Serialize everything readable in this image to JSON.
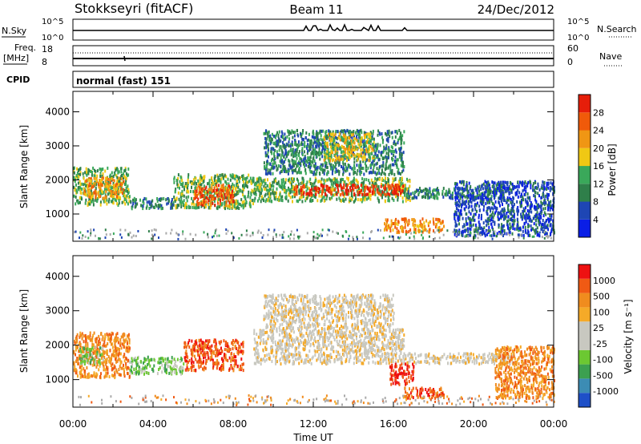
{
  "header": {
    "station": "Stokkseyri (fitACF)",
    "beam": "Beam 11",
    "date": "24/Dec/2012"
  },
  "strip_labels": {
    "nsky": "N.Sky",
    "nsearch": "N.Search",
    "freq": "Freq.",
    "freq_unit": "[MHz]",
    "nave": "Nave",
    "cpid": "CPID",
    "cpid_value": "normal (fast) 151",
    "nsky_ticks": [
      "10^5",
      "10^0"
    ],
    "nsearch_ticks": [
      "10^5",
      "10^0"
    ],
    "freq_ticks": [
      "18",
      "8"
    ],
    "nave_ticks": [
      "60",
      "0"
    ]
  },
  "colors": {
    "power_scale": [
      "#0a1ee6",
      "#1e46b4",
      "#2f7f4a",
      "#3aa85a",
      "#f0c814",
      "#f09614",
      "#f05a0a",
      "#e61e0a"
    ],
    "velocity_scale": [
      "#ee1111",
      "#f05a14",
      "#f08c1e",
      "#f5aa28",
      "#c8c8c0",
      "#c8c8c0",
      "#6cc832",
      "#3ca050",
      "#3c8cb4",
      "#1e50c8"
    ],
    "ground_scatter": "#aaaaaa"
  },
  "chart_data": [
    {
      "type": "heatmap",
      "name": "power",
      "ylabel": "Slant Range [km]",
      "yticks": [
        "1000",
        "2000",
        "3000",
        "4000"
      ],
      "ylim": [
        200,
        4600
      ],
      "xlim": [
        0,
        24
      ],
      "colorbar_label": "Power [dB]",
      "colorbar_ticks": [
        "4",
        "8",
        "12",
        "16",
        "20",
        "24",
        "28"
      ],
      "bands": [
        {
          "t0": 0.0,
          "t1": 2.8,
          "r0": 1300,
          "r1": 2400,
          "level": 3
        },
        {
          "t0": 0.5,
          "t1": 2.5,
          "r0": 1500,
          "r1": 2100,
          "level": 5
        },
        {
          "t0": 2.8,
          "t1": 5.0,
          "r0": 1200,
          "r1": 1500,
          "level": 2
        },
        {
          "t0": 5.0,
          "t1": 9.0,
          "r0": 1200,
          "r1": 2200,
          "level": 3
        },
        {
          "t0": 6.0,
          "t1": 8.0,
          "r0": 1300,
          "r1": 1900,
          "level": 6
        },
        {
          "t0": 9.0,
          "t1": 16.8,
          "r0": 1400,
          "r1": 2100,
          "level": 3
        },
        {
          "t0": 11.0,
          "t1": 16.5,
          "r0": 1600,
          "r1": 1900,
          "level": 7
        },
        {
          "t0": 9.5,
          "t1": 16.5,
          "r0": 2200,
          "r1": 3500,
          "level": 2
        },
        {
          "t0": 12.5,
          "t1": 15.0,
          "r0": 2600,
          "r1": 3400,
          "level": 4
        },
        {
          "t0": 15.5,
          "t1": 18.5,
          "r0": 500,
          "r1": 900,
          "level": 5
        },
        {
          "t0": 16.5,
          "t1": 21.5,
          "r0": 1500,
          "r1": 1800,
          "level": 2
        },
        {
          "t0": 19.0,
          "t1": 24.0,
          "r0": 400,
          "r1": 2000,
          "level": 1
        }
      ]
    },
    {
      "type": "heatmap",
      "name": "velocity",
      "ylabel": "Slant Range [km]",
      "yticks": [
        "1000",
        "2000",
        "3000",
        "4000"
      ],
      "ylim": [
        200,
        4600
      ],
      "xlim": [
        0,
        24
      ],
      "xticks": [
        "00:00",
        "04:00",
        "08:00",
        "12:00",
        "16:00",
        "20:00",
        "00:00"
      ],
      "xlabel": "Time UT",
      "colorbar_label": "Velocity [m s⁻¹]",
      "colorbar_ticks": [
        "1000",
        "500",
        "100",
        "25",
        "-25",
        "-100",
        "-500",
        "-1000"
      ],
      "bands": [
        {
          "t0": 0.0,
          "t1": 2.8,
          "r0": 1100,
          "r1": 2400,
          "level": 2
        },
        {
          "t0": 0.3,
          "t1": 1.5,
          "r0": 1500,
          "r1": 2000,
          "level": 6
        },
        {
          "t0": 2.8,
          "t1": 5.5,
          "r0": 1200,
          "r1": 1700,
          "level": 6
        },
        {
          "t0": 5.5,
          "t1": 8.5,
          "r0": 1300,
          "r1": 2200,
          "level": 1
        },
        {
          "t0": 9.0,
          "t1": 16.5,
          "r0": 1500,
          "r1": 2500,
          "level": 4
        },
        {
          "t0": 9.5,
          "t1": 16.0,
          "r0": 2500,
          "r1": 3500,
          "level": 4
        },
        {
          "t0": 15.8,
          "t1": 17.0,
          "r0": 900,
          "r1": 1500,
          "level": 0
        },
        {
          "t0": 16.5,
          "t1": 18.5,
          "r0": 500,
          "r1": 800,
          "level": 1
        },
        {
          "t0": 16.5,
          "t1": 22.0,
          "r0": 1500,
          "r1": 1800,
          "level": 4
        },
        {
          "t0": 21.0,
          "t1": 24.0,
          "r0": 500,
          "r1": 2000,
          "level": 2
        }
      ]
    }
  ]
}
